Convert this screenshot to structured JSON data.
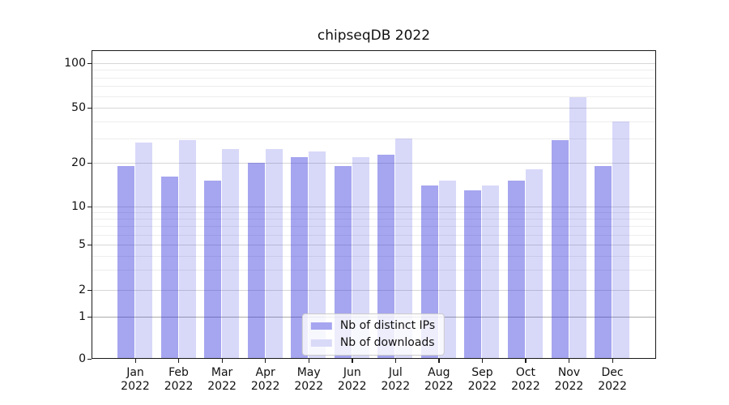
{
  "chart_data": {
    "type": "bar",
    "title": "chipseqDB 2022",
    "categories": [
      "Jan 2022",
      "Feb 2022",
      "Mar 2022",
      "Apr 2022",
      "May 2022",
      "Jun 2022",
      "Jul 2022",
      "Aug 2022",
      "Sep 2022",
      "Oct 2022",
      "Nov 2022",
      "Dec 2022"
    ],
    "x_tick_line1": [
      "Jan",
      "Feb",
      "Mar",
      "Apr",
      "May",
      "Jun",
      "Jul",
      "Aug",
      "Sep",
      "Oct",
      "Nov",
      "Dec"
    ],
    "x_tick_line2": "2022",
    "series": [
      {
        "name": "Nb of distinct IPs",
        "legend_color": "#a5a5f0",
        "fill": "rgba(40,40,220,0.42)",
        "values": [
          19,
          16,
          15,
          20,
          22,
          19,
          23,
          14,
          13,
          15,
          29,
          19
        ]
      },
      {
        "name": "Nb of downloads",
        "legend_color": "#d9d9f8",
        "fill": "rgba(40,40,220,0.18)",
        "values": [
          28,
          29,
          25,
          25,
          24,
          22,
          30,
          15,
          14,
          18,
          59,
          40
        ]
      }
    ],
    "yscale": "symlog",
    "ytick_values": [
      0,
      1,
      2,
      5,
      10,
      20,
      50,
      100
    ],
    "ytick_labels": [
      "0",
      "1",
      "2",
      "5",
      "10",
      "20",
      "50",
      "100"
    ],
    "ytick_values_minor": [
      3,
      4,
      6,
      7,
      8,
      9,
      30,
      40,
      60,
      70,
      80,
      90
    ],
    "ylim": [
      0,
      123
    ],
    "xlabel": "",
    "ylabel": "",
    "grid": "both",
    "legend": {
      "location": "lower center",
      "entries": [
        "Nb of distinct IPs",
        "Nb of downloads"
      ]
    },
    "colors": {
      "grid_major": "#d7d7d7",
      "grid_major_unit": "#aaaaaa",
      "grid_minor": "#ededed",
      "axis": "#1a1a1a",
      "text": "#111111"
    }
  }
}
